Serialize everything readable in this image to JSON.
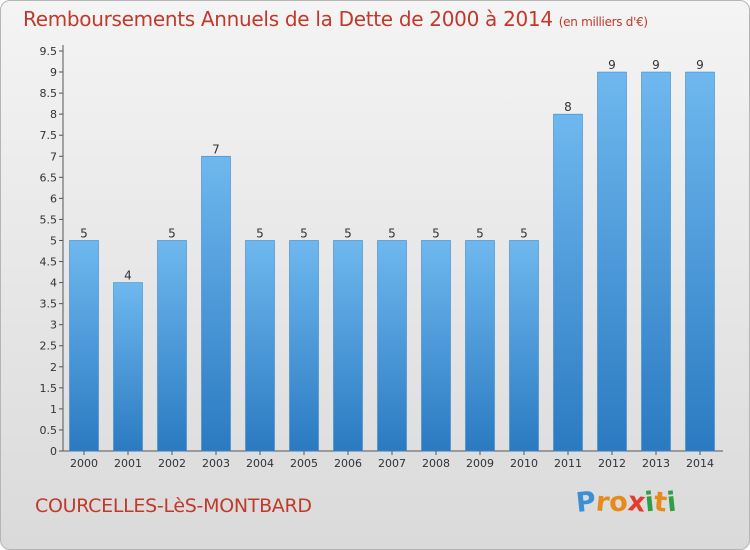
{
  "title": "Remboursements Annuels de la Dette de 2000 à 2014",
  "unit": "(en milliers d'€)",
  "location": "COURCELLES-LèS-MONTBARD",
  "logo": {
    "letters": [
      "P",
      "r",
      "o",
      "x",
      "i",
      "t",
      "i"
    ],
    "colors": [
      "#3b8fd4",
      "#e8891b",
      "#e8891b",
      "#e53b2d",
      "#2f9e44",
      "#e8891b",
      "#2f9e44"
    ]
  },
  "colors": {
    "bar": "#4e9fe0",
    "bar_top": "#6fb8ef",
    "bar_bottom": "#2b7ac1",
    "axis": "#555555",
    "title": "#c0392b"
  },
  "chart_data": {
    "type": "bar",
    "categories": [
      "2000",
      "2001",
      "2002",
      "2003",
      "2004",
      "2005",
      "2006",
      "2007",
      "2008",
      "2009",
      "2010",
      "2011",
      "2012",
      "2013",
      "2014"
    ],
    "values": [
      5,
      4,
      5,
      7,
      5,
      5,
      5,
      5,
      5,
      5,
      5,
      8,
      9,
      9,
      9
    ],
    "data_labels": [
      "5",
      "4",
      "5",
      "7",
      "5",
      "5",
      "5",
      "5",
      "5",
      "5",
      "5",
      "8",
      "9",
      "9",
      "9"
    ],
    "yticks": [
      "0",
      "0.5",
      "1",
      "1.5",
      "2",
      "2.5",
      "3",
      "3.5",
      "4",
      "4.5",
      "5",
      "5.5",
      "6",
      "6.5",
      "7",
      "7.5",
      "8",
      "8.5",
      "9",
      "9.5"
    ],
    "ylim": [
      0,
      9.5
    ],
    "grid": false
  }
}
